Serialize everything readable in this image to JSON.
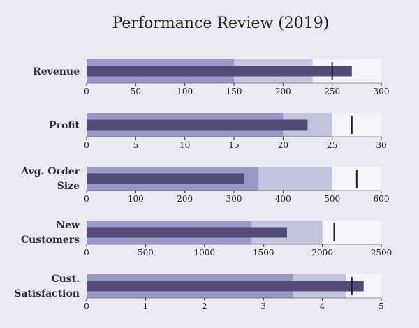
{
  "chart_data": {
    "type": "bullet",
    "title": "Performance Review (2019)",
    "colors": {
      "band_bad": "#9b98c9",
      "band_ok": "#c5c4df",
      "band_good": "#f4f4fb",
      "measure": "#514d78",
      "target": "#1c1c2a",
      "axis": "#333333"
    },
    "bullets": [
      {
        "label": [
          "Revenue"
        ],
        "ranges": [
          150,
          230,
          300
        ],
        "measure": 270,
        "target": 250,
        "xlim": [
          0,
          300
        ],
        "ticks": [
          0,
          50,
          100,
          150,
          200,
          250,
          300
        ]
      },
      {
        "label": [
          "Profit"
        ],
        "ranges": [
          20,
          25,
          30
        ],
        "measure": 22.5,
        "target": 27,
        "xlim": [
          0,
          30
        ],
        "ticks": [
          0,
          5,
          10,
          15,
          20,
          25,
          30
        ]
      },
      {
        "label": [
          "Avg. Order",
          "Size"
        ],
        "ranges": [
          350,
          500,
          600
        ],
        "measure": 320,
        "target": 550,
        "xlim": [
          0,
          600
        ],
        "ticks": [
          0,
          100,
          200,
          300,
          400,
          500,
          600
        ]
      },
      {
        "label": [
          "New",
          "Customers"
        ],
        "ranges": [
          1400,
          2000,
          2500
        ],
        "measure": 1700,
        "target": 2100,
        "xlim": [
          0,
          2500
        ],
        "ticks": [
          0,
          500,
          1000,
          1500,
          2000,
          2500
        ]
      },
      {
        "label": [
          "Cust.",
          "Satisfaction"
        ],
        "ranges": [
          3.5,
          4.4,
          5
        ],
        "measure": 4.7,
        "target": 4.5,
        "xlim": [
          0,
          5
        ],
        "ticks": [
          0,
          1,
          2,
          3,
          4,
          5
        ]
      }
    ]
  }
}
